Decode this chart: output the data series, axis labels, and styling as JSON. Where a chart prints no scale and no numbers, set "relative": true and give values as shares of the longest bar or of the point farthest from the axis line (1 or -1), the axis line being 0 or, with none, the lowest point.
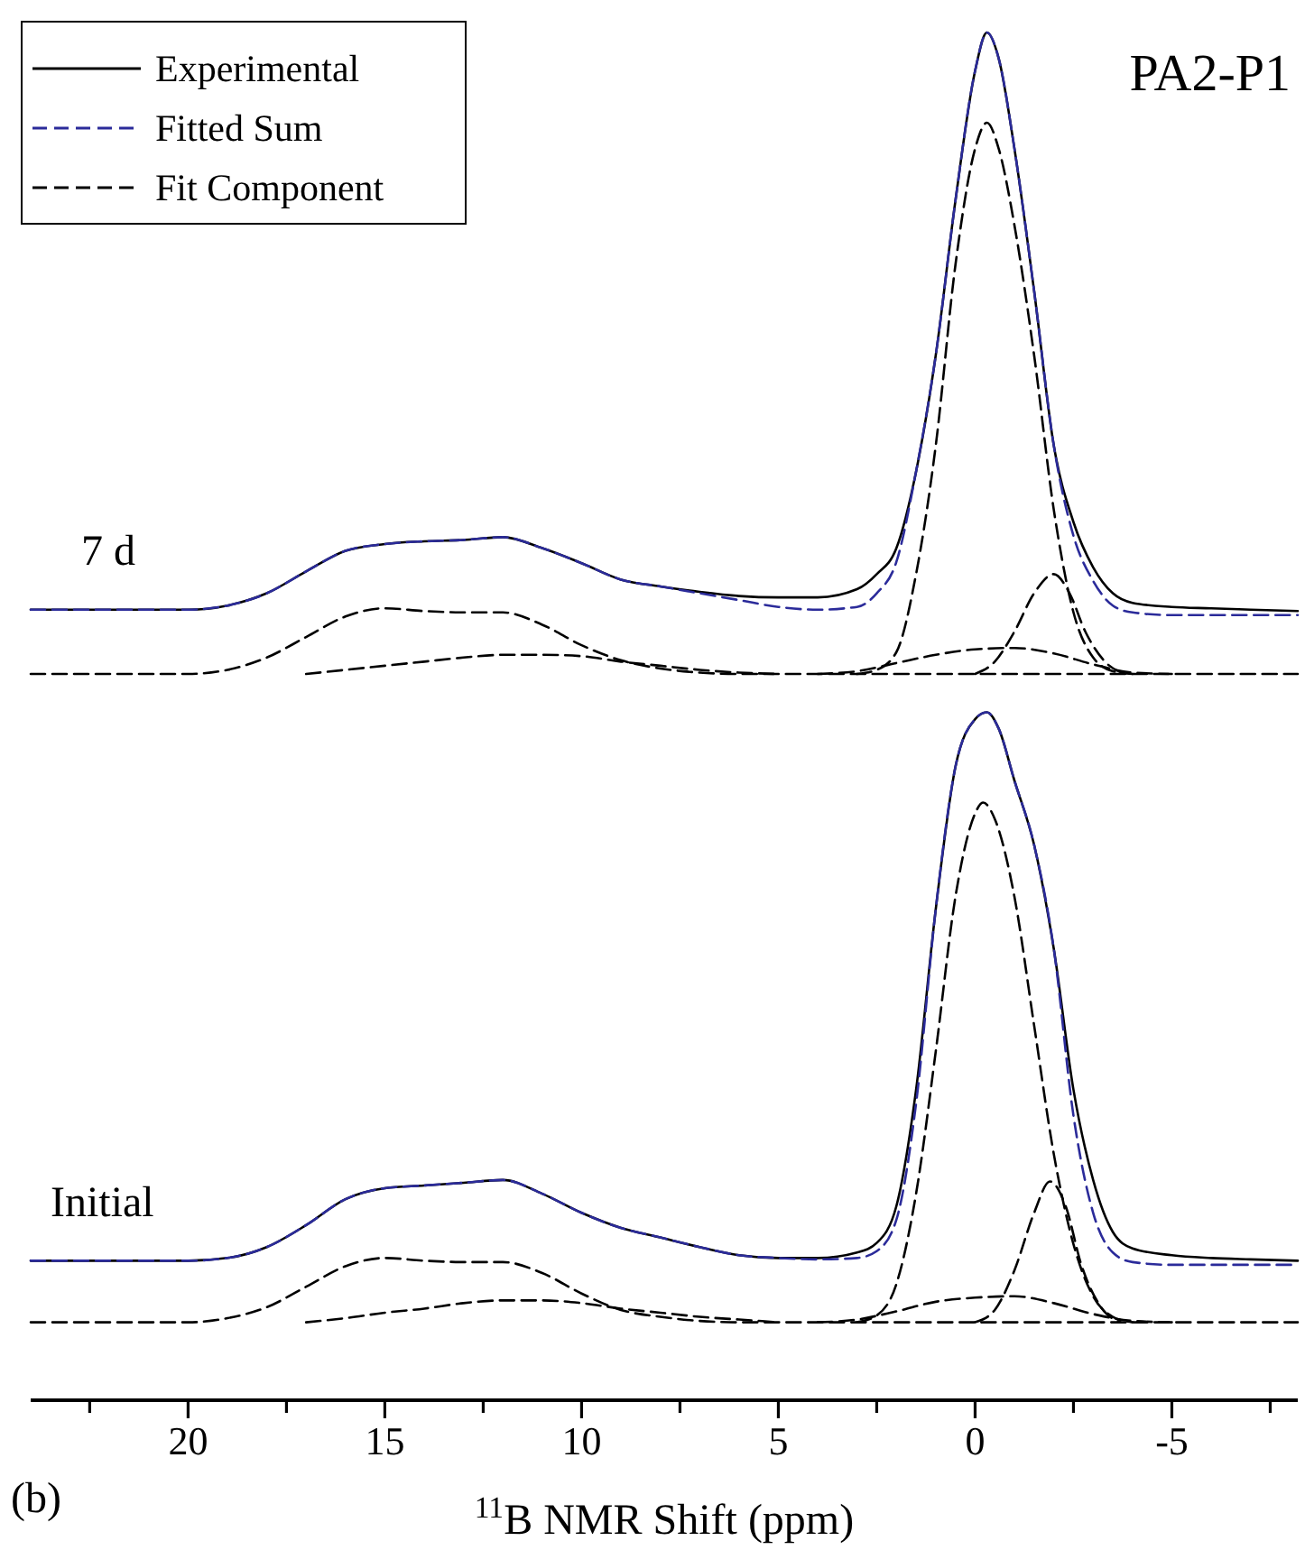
{
  "chart_data": {
    "type": "line",
    "title": "PA2-P1",
    "xlabel": "$^{11}$B NMR Shift (ppm)",
    "relative": true,
    "legend": "top left",
    "xlim": [
      24,
      -8.2
    ],
    "xticks": [
      {
        "value": 22.5,
        "label": null
      },
      20,
      {
        "value": 17.5,
        "label": null
      },
      15,
      {
        "value": 12.5,
        "label": null
      },
      10,
      {
        "value": 7.5,
        "label": null
      },
      5,
      {
        "value": 2.5,
        "label": null
      },
      0,
      {
        "value": -2.5,
        "label": null
      },
      -5,
      {
        "value": -7.5,
        "label": null
      }
    ],
    "annotations": [
      "7 d",
      "Initial",
      "(b)"
    ],
    "series": [
      {
        "name": "Experimental",
        "color": "#000000",
        "line_style": "solid",
        "x": [
          24,
          20,
          19,
          18,
          17,
          16,
          15,
          14,
          13,
          12,
          11,
          10,
          9,
          8,
          7,
          6,
          5,
          4,
          3,
          2.5,
          2,
          1.5,
          1,
          0.5,
          0,
          -0.3,
          -0.6,
          -1,
          -1.5,
          -2,
          -2.5,
          -3,
          -3.5,
          -4,
          -5,
          -6,
          -7,
          -8.2
        ],
        "values": [
          0.578,
          0.578,
          0.581,
          0.59,
          0.606,
          0.621,
          0.626,
          0.628,
          0.629,
          0.631,
          0.623,
          0.612,
          0.6,
          0.595,
          0.591,
          0.588,
          0.587,
          0.587,
          0.593,
          0.604,
          0.623,
          0.679,
          0.764,
          0.877,
          0.972,
          1.0,
          0.981,
          0.915,
          0.811,
          0.698,
          0.642,
          0.609,
          0.59,
          0.583,
          0.58,
          0.579,
          0.578,
          0.577
        ]
      },
      {
        "name": "Fitted Sum",
        "color": "#2b2b9a",
        "line_style": "dashed",
        "x": [
          24,
          20,
          19,
          18,
          17,
          16,
          15,
          14,
          13,
          12,
          11,
          10,
          9,
          8,
          7,
          6,
          5,
          4,
          3,
          2.5,
          2,
          1.5,
          1,
          0.5,
          0,
          -0.3,
          -0.6,
          -1,
          -1.5,
          -2,
          -2.5,
          -3,
          -3.5,
          -4,
          -5,
          -6,
          -7,
          -8.2
        ],
        "values": [
          0.578,
          0.578,
          0.581,
          0.59,
          0.606,
          0.621,
          0.626,
          0.628,
          0.629,
          0.631,
          0.623,
          0.612,
          0.6,
          0.595,
          0.59,
          0.585,
          0.58,
          0.578,
          0.58,
          0.59,
          0.613,
          0.679,
          0.764,
          0.877,
          0.972,
          1.0,
          0.981,
          0.915,
          0.811,
          0.698,
          0.632,
          0.599,
          0.581,
          0.576,
          0.574,
          0.574,
          0.574,
          0.574
        ]
      },
      {
        "name": "Fit Component",
        "color": "#000000",
        "line_style": "dashed",
        "x": [
          24,
          20,
          19,
          18,
          17,
          16,
          15,
          14,
          13,
          12,
          11,
          10,
          9,
          8,
          7,
          6,
          -8.2
        ],
        "values": [
          0.531,
          0.531,
          0.534,
          0.543,
          0.558,
          0.573,
          0.579,
          0.577,
          0.576,
          0.576,
          0.567,
          0.552,
          0.541,
          0.535,
          0.532,
          0.531,
          0.531
        ]
      },
      {
        "color": "#000000",
        "line_style": "dashed",
        "x": [
          17,
          16,
          15,
          14,
          13,
          12,
          11,
          10,
          9,
          8,
          7,
          6,
          5
        ],
        "values": [
          0.531,
          0.534,
          0.537,
          0.54,
          0.543,
          0.545,
          0.545,
          0.544,
          0.54,
          0.537,
          0.534,
          0.532,
          0.531
        ]
      },
      {
        "color": "#000000",
        "line_style": "dashed",
        "x": [
          3,
          2.5,
          2,
          1.5,
          1,
          0.5,
          0,
          -0.3,
          -0.6,
          -1,
          -1.5,
          -2,
          -2.5,
          -3,
          -3.5,
          -4
        ],
        "values": [
          0.531,
          0.534,
          0.547,
          0.604,
          0.698,
          0.83,
          0.915,
          0.934,
          0.915,
          0.859,
          0.764,
          0.651,
          0.576,
          0.543,
          0.533,
          0.531
        ]
      },
      {
        "color": "#000000",
        "line_style": "dashed",
        "x": [
          0,
          -0.5,
          -1,
          -1.5,
          -2,
          -2.4,
          -2.8,
          -3.3,
          -3.8
        ],
        "values": [
          0.531,
          0.54,
          0.562,
          0.59,
          0.604,
          0.59,
          0.562,
          0.54,
          0.531
        ]
      },
      {
        "color": "#000000",
        "line_style": "dashed",
        "x": [
          4,
          3,
          2,
          1,
          0,
          -1,
          -2,
          -3,
          -4,
          -5
        ],
        "values": [
          0.531,
          0.533,
          0.539,
          0.545,
          0.549,
          0.55,
          0.546,
          0.538,
          0.532,
          0.531
        ]
      },
      {
        "color": "#000000",
        "line_style": "solid",
        "x": [
          24,
          20,
          19,
          18,
          17,
          16,
          15,
          14,
          13,
          12,
          11,
          10,
          9,
          8,
          7,
          6,
          5,
          4,
          3,
          2.5,
          2,
          1.5,
          1,
          0.5,
          0,
          -0.3,
          -0.6,
          -1,
          -1.5,
          -2,
          -2.5,
          -3,
          -3.5,
          -4,
          -5,
          -6,
          -7,
          -8.2
        ],
        "values": [
          0.102,
          0.102,
          0.104,
          0.112,
          0.128,
          0.147,
          0.155,
          0.157,
          0.159,
          0.161,
          0.151,
          0.137,
          0.126,
          0.119,
          0.112,
          0.106,
          0.104,
          0.104,
          0.108,
          0.115,
          0.142,
          0.227,
          0.359,
          0.463,
          0.498,
          0.503,
          0.491,
          0.453,
          0.406,
          0.33,
          0.227,
          0.161,
          0.123,
          0.111,
          0.106,
          0.104,
          0.103,
          0.102
        ]
      },
      {
        "color": "#2b2b9a",
        "line_style": "dashed",
        "x": [
          24,
          20,
          19,
          18,
          17,
          16,
          15,
          14,
          13,
          12,
          11,
          10,
          9,
          8,
          7,
          6,
          5,
          4,
          3,
          2.5,
          2,
          1.5,
          1,
          0.5,
          0,
          -0.3,
          -0.6,
          -1,
          -1.5,
          -2,
          -2.5,
          -3,
          -3.5,
          -4,
          -5,
          -6,
          -7,
          -8.2
        ],
        "values": [
          0.102,
          0.102,
          0.104,
          0.112,
          0.128,
          0.147,
          0.155,
          0.157,
          0.159,
          0.161,
          0.151,
          0.137,
          0.126,
          0.119,
          0.112,
          0.106,
          0.104,
          0.103,
          0.104,
          0.109,
          0.132,
          0.217,
          0.359,
          0.463,
          0.498,
          0.503,
          0.491,
          0.453,
          0.406,
          0.33,
          0.208,
          0.137,
          0.108,
          0.101,
          0.099,
          0.099,
          0.099,
          0.099
        ]
      },
      {
        "color": "#000000",
        "line_style": "dashed",
        "x": [
          24,
          20,
          19,
          18,
          17,
          16,
          15,
          14,
          13,
          12,
          11,
          10,
          9,
          8,
          7,
          6,
          -8.2
        ],
        "values": [
          0.057,
          0.057,
          0.06,
          0.068,
          0.083,
          0.098,
          0.104,
          0.102,
          0.101,
          0.101,
          0.093,
          0.078,
          0.066,
          0.061,
          0.058,
          0.057,
          0.057
        ]
      },
      {
        "color": "#000000",
        "line_style": "dashed",
        "x": [
          17,
          16,
          15,
          14,
          13,
          12,
          11,
          10,
          9,
          8,
          7,
          6,
          5
        ],
        "values": [
          0.057,
          0.06,
          0.064,
          0.067,
          0.071,
          0.073,
          0.073,
          0.071,
          0.067,
          0.064,
          0.061,
          0.059,
          0.057
        ]
      },
      {
        "color": "#000000",
        "line_style": "dashed",
        "x": [
          3,
          2.5,
          2,
          1.5,
          1,
          0.5,
          0,
          -0.2,
          -0.5,
          -1,
          -1.5,
          -2,
          -2.5,
          -3,
          -3.5,
          -4
        ],
        "values": [
          0.057,
          0.062,
          0.085,
          0.151,
          0.255,
          0.368,
          0.429,
          0.437,
          0.425,
          0.368,
          0.274,
          0.18,
          0.114,
          0.076,
          0.061,
          0.057
        ]
      },
      {
        "color": "#000000",
        "line_style": "dashed",
        "x": [
          0,
          -0.5,
          -1,
          -1.5,
          -1.9,
          -2.3,
          -2.7,
          -3.2,
          -3.7
        ],
        "values": [
          0.057,
          0.066,
          0.095,
          0.137,
          0.16,
          0.142,
          0.099,
          0.068,
          0.057
        ]
      },
      {
        "color": "#000000",
        "line_style": "dashed",
        "x": [
          4,
          3,
          2,
          1,
          0,
          -1,
          -2,
          -3,
          -4,
          -5
        ],
        "values": [
          0.057,
          0.059,
          0.065,
          0.072,
          0.075,
          0.076,
          0.071,
          0.063,
          0.058,
          0.057
        ]
      }
    ]
  }
}
